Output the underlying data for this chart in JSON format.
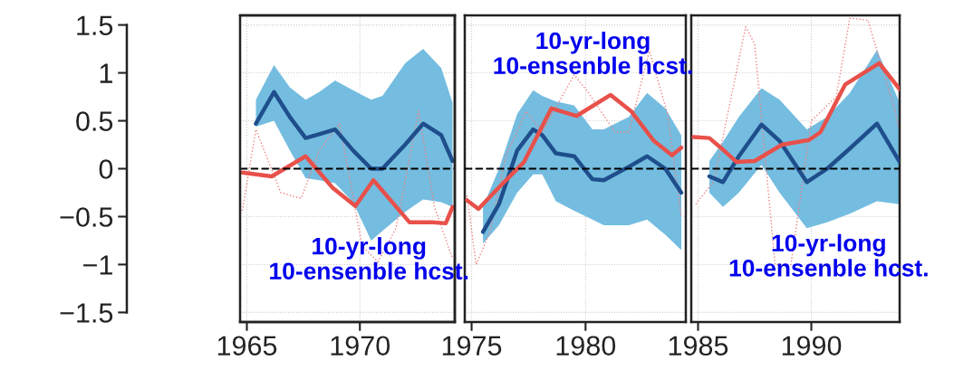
{
  "chart_data": [
    {
      "type": "line",
      "xlim": [
        1964.7,
        1974.2
      ],
      "xticks": [
        1965,
        1970
      ],
      "ylim": [
        -1.6,
        1.6
      ],
      "yticks": [
        1.5,
        1,
        0.5,
        0,
        {
          "value": -0.5,
          "label": "−0.5"
        },
        {
          "value": -1,
          "label": "−1"
        },
        {
          "value": -1.5,
          "label": "−1.5"
        }
      ],
      "grid": true,
      "ref_lines": [
        {
          "axis": "y",
          "value": 0,
          "color": "#000000",
          "line_style": "dashed"
        }
      ],
      "annotations": [
        "10-yr-long\n10-ensenble hcst."
      ],
      "series": [
        {
          "color": "#f08080",
          "line_style": "dotted",
          "x": [
            1964.8,
            1965.4,
            1966.5,
            1967.4,
            1968.2,
            1969.1,
            1970.1,
            1970.8,
            1971.6,
            1972.6,
            1973.3,
            1974.1
          ],
          "values": [
            -0.44,
            0.41,
            -0.25,
            -0.31,
            0.19,
            0.47,
            -0.81,
            -0.97,
            -0.62,
            0.6,
            -0.4,
            -0.94
          ]
        },
        {
          "color": "#1f4e8c",
          "line_style": "solid",
          "x": [
            1965.4,
            1966.2,
            1966.9,
            1967.6,
            1968.2,
            1968.9,
            1969.7,
            1970.5,
            1971.0,
            1972.0,
            1972.8,
            1973.6,
            1974.1
          ],
          "values": [
            0.47,
            0.8,
            0.54,
            0.32,
            0.36,
            0.41,
            0.19,
            0.0,
            0.0,
            0.25,
            0.47,
            0.35,
            0.08
          ],
          "lower": [
            0.44,
            0.5,
            0.19,
            -0.1,
            -0.12,
            -0.15,
            -0.35,
            -0.75,
            -0.65,
            -0.45,
            -0.32,
            -0.35,
            -0.4
          ],
          "upper": [
            0.72,
            1.08,
            0.85,
            0.72,
            0.8,
            0.92,
            0.82,
            0.72,
            0.76,
            1.1,
            1.25,
            1.05,
            0.69
          ]
        },
        {
          "color": "#e8504a",
          "line_style": "solid",
          "x": [
            1964.8,
            1966.1,
            1967.6,
            1968.8,
            1969.8,
            1970.6,
            1972.2,
            1973.2,
            1973.8,
            1974.1
          ],
          "values": [
            -0.04,
            -0.08,
            0.13,
            -0.2,
            -0.39,
            -0.12,
            -0.56,
            -0.56,
            -0.57,
            -0.4
          ]
        }
      ]
    },
    {
      "type": "line",
      "xlim": [
        1974.7,
        1984.4
      ],
      "xticks": [
        1975,
        1980
      ],
      "ylim": [
        -1.6,
        1.6
      ],
      "yticks": [
        1.5,
        1,
        0.5,
        0,
        -0.5,
        -1,
        -1.5
      ],
      "tick_labels": "x",
      "grid": true,
      "ref_lines": [
        {
          "axis": "y",
          "value": 0,
          "color": "#000000",
          "line_style": "dashed"
        }
      ],
      "annotations": [
        "10-yr-long\n10-ensenble hcst."
      ],
      "series": [
        {
          "color": "#f08080",
          "line_style": "dotted",
          "x": [
            1974.8,
            1975.2,
            1975.8,
            1976.5,
            1977.4,
            1978.1,
            1979.5,
            1980.1,
            1981.3,
            1981.9,
            1982.8,
            1983.6,
            1984.2
          ],
          "values": [
            -0.28,
            -1.0,
            -0.66,
            0.13,
            0.6,
            0.38,
            0.98,
            0.8,
            0.38,
            0.38,
            1.23,
            0.57,
            -0.5
          ]
        },
        {
          "color": "#1f4e8c",
          "line_style": "solid",
          "x": [
            1975.5,
            1976.2,
            1977.0,
            1977.7,
            1978.1,
            1978.7,
            1979.5,
            1980.3,
            1980.8,
            1981.9,
            1982.7,
            1983.5,
            1984.2
          ],
          "values": [
            -0.66,
            -0.37,
            0.19,
            0.41,
            0.35,
            0.16,
            0.13,
            -0.11,
            -0.12,
            0.02,
            0.13,
            0.0,
            -0.25
          ],
          "lower": [
            -0.78,
            -0.59,
            -0.25,
            -0.06,
            -0.06,
            -0.34,
            -0.44,
            -0.53,
            -0.59,
            -0.59,
            -0.53,
            -0.69,
            -0.85
          ],
          "upper": [
            -0.4,
            0.0,
            0.57,
            0.82,
            0.76,
            0.7,
            0.66,
            0.41,
            0.41,
            0.54,
            0.79,
            0.63,
            0.35
          ]
        },
        {
          "color": "#e8504a",
          "line_style": "solid",
          "x": [
            1974.8,
            1975.3,
            1976.1,
            1977.3,
            1978.5,
            1979.6,
            1981.1,
            1982.0,
            1983.0,
            1983.8,
            1984.2
          ],
          "values": [
            -0.33,
            -0.42,
            -0.22,
            0.07,
            0.63,
            0.55,
            0.77,
            0.6,
            0.29,
            0.14,
            0.22
          ]
        }
      ]
    },
    {
      "type": "line",
      "xlim": [
        1984.7,
        1993.9
      ],
      "xticks": [
        1985,
        1990
      ],
      "ylim": [
        -1.6,
        1.6
      ],
      "yticks": [
        1.5,
        1,
        0.5,
        0,
        -0.5,
        -1,
        -1.5
      ],
      "tick_labels": "x",
      "grid": true,
      "ref_lines": [
        {
          "axis": "y",
          "value": 0,
          "color": "#000000",
          "line_style": "dashed"
        }
      ],
      "annotations": [
        "10-yr-long\n10-ensenble hcst."
      ],
      "series": [
        {
          "color": "#f08080",
          "line_style": "dotted",
          "x": [
            1984.9,
            1985.7,
            1987.1,
            1987.5,
            1988.4,
            1989.1,
            1990.0,
            1991.1,
            1991.7,
            1992.5,
            1993.7,
            1993.9
          ],
          "values": [
            -0.37,
            -0.13,
            1.48,
            1.3,
            -1.0,
            -1.0,
            0.5,
            0.75,
            1.57,
            1.55,
            0.6,
            0.38
          ]
        },
        {
          "color": "#1f4e8c",
          "line_style": "solid",
          "x": [
            1985.5,
            1986.1,
            1986.8,
            1987.8,
            1988.6,
            1989.8,
            1990.7,
            1991.7,
            1992.9,
            1993.9
          ],
          "values": [
            -0.08,
            -0.14,
            0.13,
            0.46,
            0.29,
            -0.14,
            0.0,
            0.21,
            0.47,
            0.07
          ],
          "lower": [
            -0.25,
            -0.4,
            -0.25,
            0.04,
            -0.25,
            -0.62,
            -0.56,
            -0.47,
            -0.34,
            -0.37
          ],
          "upper": [
            0.08,
            0.28,
            0.54,
            0.84,
            0.72,
            0.41,
            0.54,
            0.79,
            1.24,
            0.69
          ]
        },
        {
          "color": "#e8504a",
          "line_style": "solid",
          "x": [
            1984.8,
            1985.5,
            1986.0,
            1986.7,
            1987.5,
            1988.7,
            1989.9,
            1990.4,
            1991.5,
            1993.0,
            1993.9
          ],
          "values": [
            0.33,
            0.32,
            0.22,
            0.07,
            0.08,
            0.25,
            0.3,
            0.38,
            0.88,
            1.1,
            0.83
          ]
        }
      ]
    }
  ]
}
